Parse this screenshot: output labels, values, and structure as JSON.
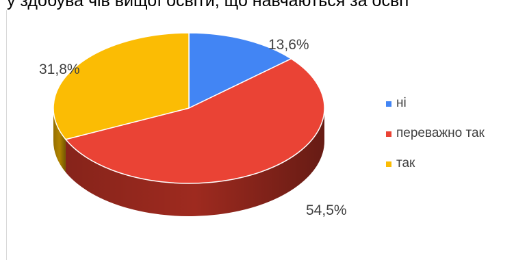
{
  "title": "у здобува чів вищої освіти, що навчаються за освіт",
  "chart_data": {
    "type": "pie",
    "title": "у здобува чів вищої освіти, що навчаються за освіт",
    "slices": [
      {
        "label": "ні",
        "value": 13.6,
        "display": "13,6%",
        "color": "#4285F4",
        "side_color": "#2a5ab0"
      },
      {
        "label": "переважно так",
        "value": 54.5,
        "display": "54,5%",
        "color": "#EA4335",
        "side_color": "#9e2a1f"
      },
      {
        "label": "так",
        "value": 31.8,
        "display": "31,8%",
        "color": "#FBBC04",
        "side_color": "#b08300"
      }
    ],
    "legend_position": "right"
  }
}
